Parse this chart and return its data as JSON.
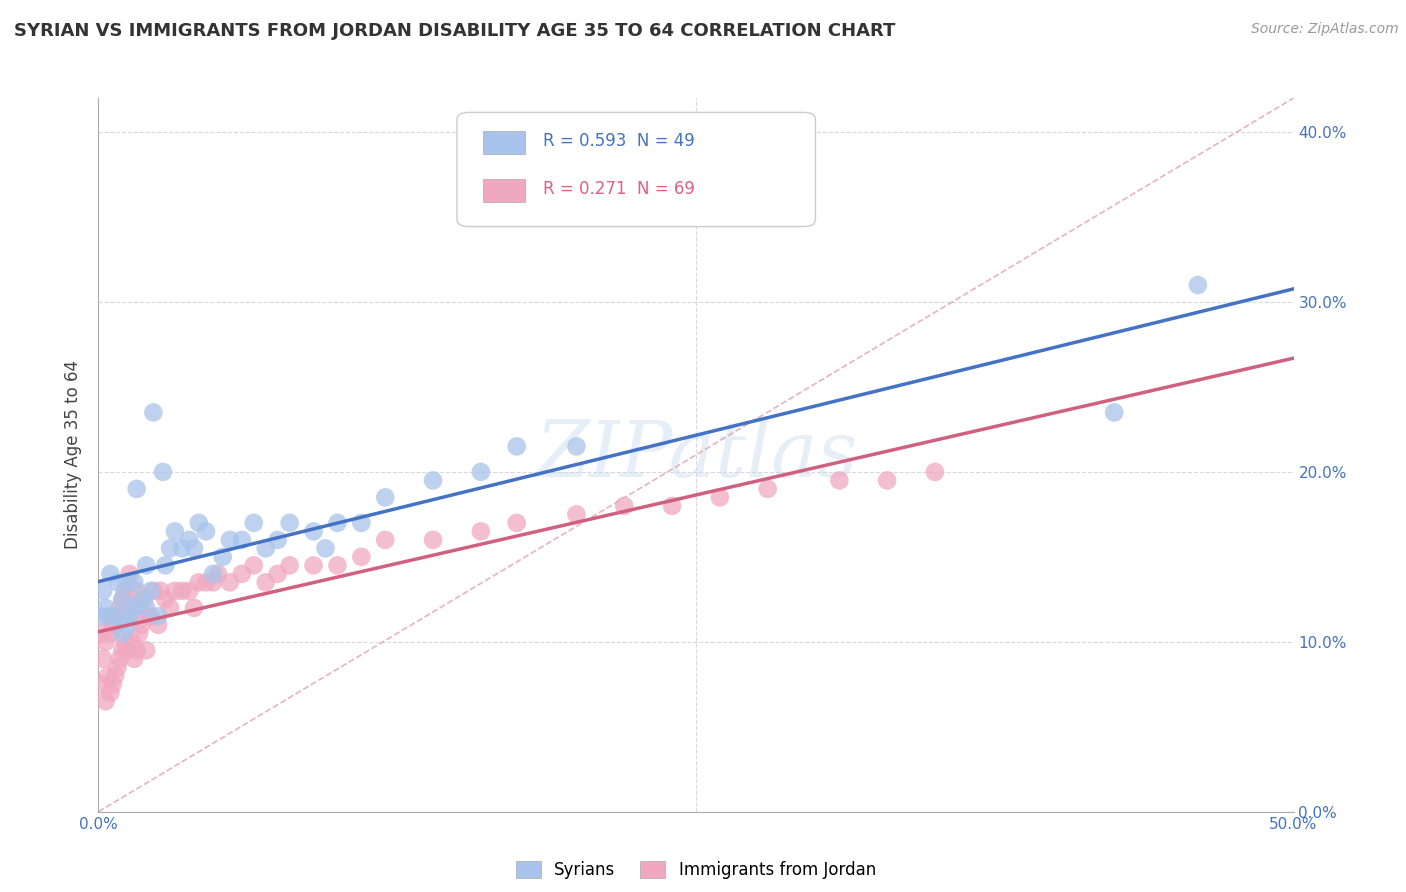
{
  "title": "SYRIAN VS IMMIGRANTS FROM JORDAN DISABILITY AGE 35 TO 64 CORRELATION CHART",
  "source": "Source: ZipAtlas.com",
  "ylabel": "Disability Age 35 to 64",
  "xlim": [
    0.0,
    0.5
  ],
  "ylim": [
    0.0,
    0.42
  ],
  "yticks": [
    0.0,
    0.1,
    0.2,
    0.3,
    0.4
  ],
  "ytick_labels": [
    "0.0%",
    "10.0%",
    "20.0%",
    "30.0%",
    "40.0%"
  ],
  "xtick_labels_show": [
    "0.0%",
    "50.0%"
  ],
  "legend_label1": "Syrians",
  "legend_label2": "Immigrants from Jordan",
  "R1": 0.593,
  "N1": 49,
  "R2": 0.271,
  "N2": 69,
  "color_syrians": "#a8c4ec",
  "color_jordan": "#f0a8c0",
  "color_line_syrians": "#4472c4",
  "color_line_jordan": "#d06080",
  "color_diag": "#e0a0b0",
  "background_color": "#ffffff",
  "grid_color": "#d8d8d8",
  "syrians_x": [
    0.001,
    0.002,
    0.003,
    0.005,
    0.005,
    0.008,
    0.008,
    0.01,
    0.01,
    0.012,
    0.012,
    0.013,
    0.015,
    0.015,
    0.016,
    0.018,
    0.02,
    0.02,
    0.022,
    0.023,
    0.025,
    0.027,
    0.028,
    0.03,
    0.032,
    0.035,
    0.038,
    0.04,
    0.042,
    0.045,
    0.048,
    0.052,
    0.055,
    0.06,
    0.065,
    0.07,
    0.075,
    0.08,
    0.09,
    0.095,
    0.1,
    0.11,
    0.12,
    0.14,
    0.16,
    0.175,
    0.2,
    0.425,
    0.46
  ],
  "syrians_y": [
    0.115,
    0.13,
    0.12,
    0.115,
    0.14,
    0.115,
    0.135,
    0.105,
    0.125,
    0.11,
    0.135,
    0.115,
    0.12,
    0.135,
    0.19,
    0.125,
    0.12,
    0.145,
    0.13,
    0.235,
    0.115,
    0.2,
    0.145,
    0.155,
    0.165,
    0.155,
    0.16,
    0.155,
    0.17,
    0.165,
    0.14,
    0.15,
    0.16,
    0.16,
    0.17,
    0.155,
    0.16,
    0.17,
    0.165,
    0.155,
    0.17,
    0.17,
    0.185,
    0.195,
    0.2,
    0.215,
    0.215,
    0.235,
    0.31
  ],
  "jordan_x": [
    0.001,
    0.001,
    0.002,
    0.003,
    0.003,
    0.004,
    0.004,
    0.005,
    0.005,
    0.006,
    0.006,
    0.007,
    0.007,
    0.008,
    0.008,
    0.009,
    0.009,
    0.01,
    0.01,
    0.011,
    0.011,
    0.012,
    0.013,
    0.013,
    0.014,
    0.015,
    0.015,
    0.016,
    0.016,
    0.017,
    0.018,
    0.019,
    0.02,
    0.021,
    0.022,
    0.023,
    0.025,
    0.026,
    0.028,
    0.03,
    0.032,
    0.035,
    0.038,
    0.04,
    0.042,
    0.045,
    0.048,
    0.05,
    0.055,
    0.06,
    0.065,
    0.07,
    0.075,
    0.08,
    0.09,
    0.1,
    0.11,
    0.12,
    0.14,
    0.16,
    0.175,
    0.2,
    0.22,
    0.24,
    0.26,
    0.28,
    0.31,
    0.33,
    0.35
  ],
  "jordan_y": [
    0.075,
    0.105,
    0.09,
    0.065,
    0.1,
    0.08,
    0.115,
    0.07,
    0.105,
    0.075,
    0.11,
    0.08,
    0.11,
    0.085,
    0.115,
    0.09,
    0.12,
    0.095,
    0.125,
    0.1,
    0.13,
    0.095,
    0.115,
    0.14,
    0.1,
    0.09,
    0.12,
    0.095,
    0.13,
    0.105,
    0.11,
    0.125,
    0.095,
    0.115,
    0.115,
    0.13,
    0.11,
    0.13,
    0.125,
    0.12,
    0.13,
    0.13,
    0.13,
    0.12,
    0.135,
    0.135,
    0.135,
    0.14,
    0.135,
    0.14,
    0.145,
    0.135,
    0.14,
    0.145,
    0.145,
    0.145,
    0.15,
    0.16,
    0.16,
    0.165,
    0.17,
    0.175,
    0.18,
    0.18,
    0.185,
    0.19,
    0.195,
    0.195,
    0.2
  ]
}
